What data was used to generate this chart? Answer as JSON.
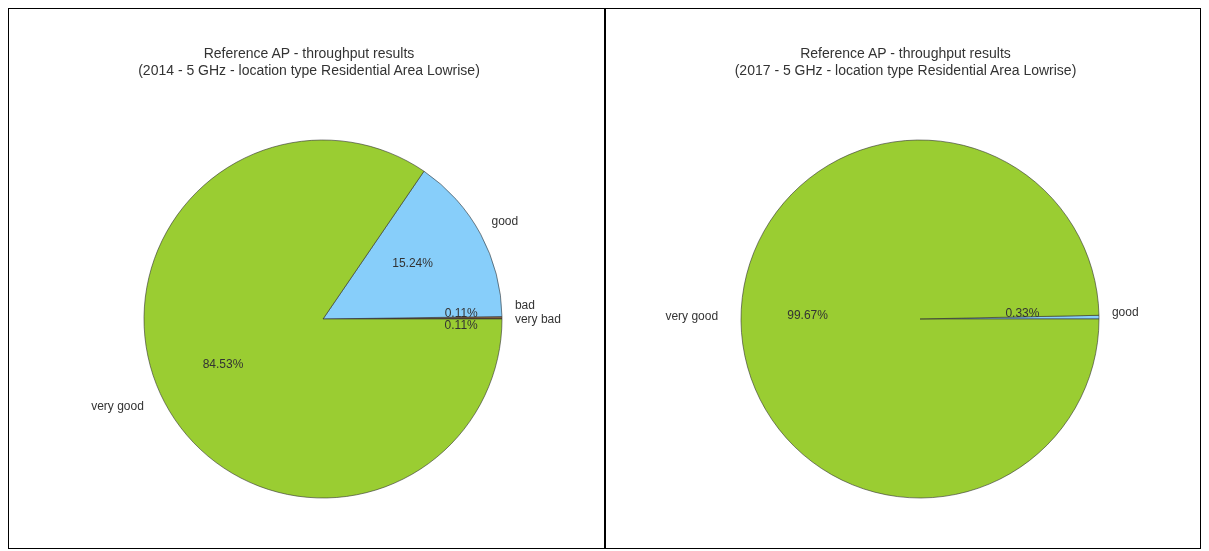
{
  "chart_data": [
    {
      "type": "pie",
      "title": "Reference AP - throughput results\n(2014 - 5 GHz - location type Residential Area Lowrise)",
      "categories": [
        "bad",
        "very bad",
        "good",
        "very good"
      ],
      "values": [
        0.11,
        0.11,
        15.24,
        84.53
      ],
      "value_labels": [
        "0.11%",
        "0.11%",
        "15.24%",
        "84.53%"
      ],
      "colors": [
        "#8b5a2b",
        "#cd853f",
        "#87cefa",
        "#9acd32"
      ]
    },
    {
      "type": "pie",
      "title": "Reference AP - throughput results\n(2017 - 5 GHz - location type Residential Area Lowrise)",
      "categories": [
        "good",
        "very good"
      ],
      "values": [
        0.33,
        99.67
      ],
      "value_labels": [
        "0.33%",
        "99.67%"
      ],
      "colors": [
        "#87cefa",
        "#9acd32"
      ]
    }
  ]
}
